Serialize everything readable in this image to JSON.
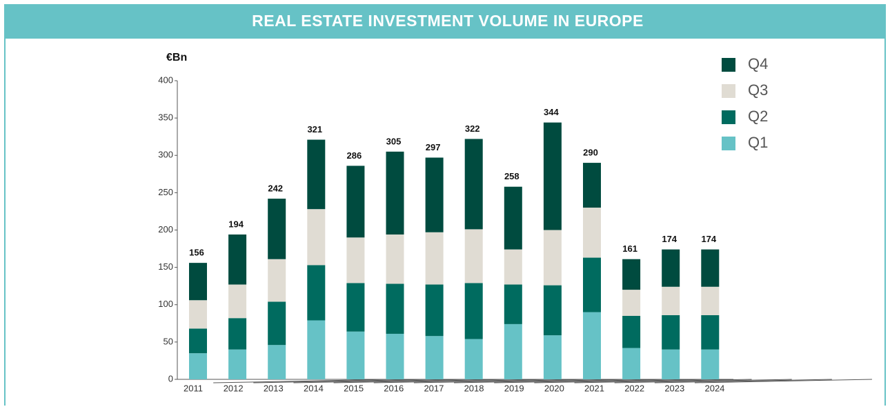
{
  "chart_data": {
    "type": "stacked_bar",
    "title": "REAL ESTATE INVESTMENT VOLUME IN EUROPE",
    "y_label": "€Bn",
    "categories": [
      "2011",
      "2012",
      "2013",
      "2014",
      "2015",
      "2016",
      "2017",
      "2018",
      "2019",
      "2020",
      "2021",
      "2022",
      "2023",
      "2024"
    ],
    "series": [
      {
        "name": "Q1",
        "color": "#66c2c6",
        "values": [
          35,
          40,
          46,
          79,
          64,
          61,
          58,
          54,
          74,
          59,
          90,
          42,
          40,
          40
        ]
      },
      {
        "name": "Q2",
        "color": "#006b5f",
        "values": [
          33,
          42,
          58,
          74,
          65,
          67,
          69,
          75,
          53,
          67,
          73,
          43,
          46,
          46
        ]
      },
      {
        "name": "Q3",
        "color": "#e0dcd3",
        "values": [
          38,
          45,
          57,
          75,
          61,
          66,
          70,
          72,
          47,
          74,
          67,
          35,
          38,
          38
        ]
      },
      {
        "name": "Q4",
        "color": "#004b3f",
        "values": [
          50,
          67,
          81,
          93,
          96,
          111,
          100,
          121,
          84,
          144,
          60,
          41,
          50,
          50
        ]
      }
    ],
    "totals": [
      156,
      194,
      242,
      321,
      286,
      305,
      297,
      322,
      258,
      344,
      290,
      161,
      174,
      174
    ],
    "ylim": [
      0,
      400
    ],
    "yticks": [
      0,
      50,
      100,
      150,
      200,
      250,
      300,
      350,
      400
    ]
  }
}
